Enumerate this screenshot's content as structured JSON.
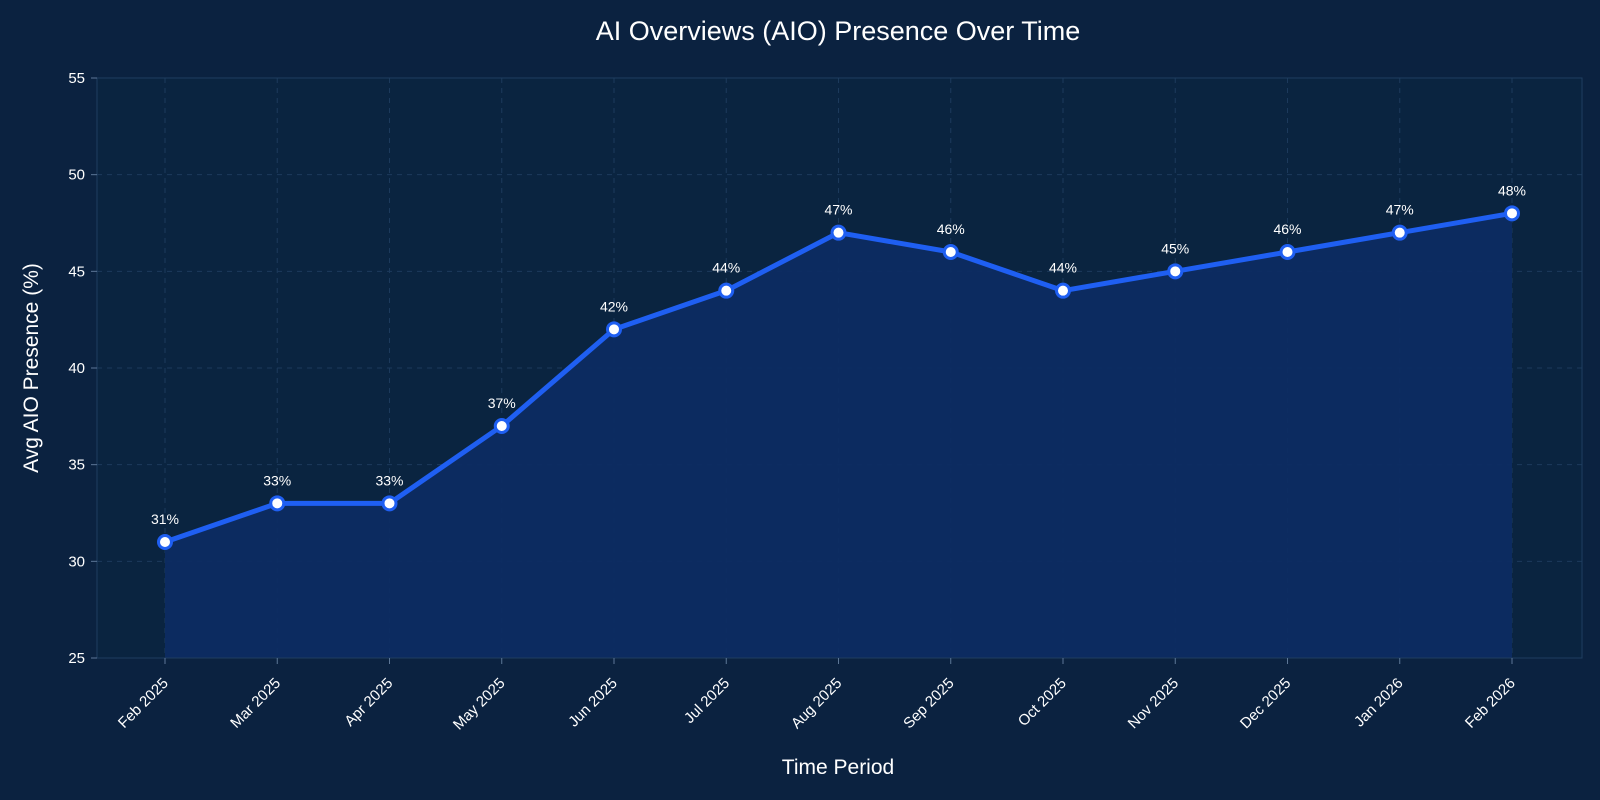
{
  "colors": {
    "background": "#0b2240",
    "plot_background": "#0a2440",
    "line": "#1f5ff2",
    "area_fill": "#0d2c62",
    "grid": "#1c3a5c",
    "marker_fill": "#ffffff",
    "text": "#ffffff"
  },
  "chart_data": {
    "type": "line",
    "title": "AI Overviews (AIO) Presence Over Time",
    "xlabel": "Time Period",
    "ylabel": "Avg AIO Presence (%)",
    "categories": [
      "Feb 2025",
      "Mar 2025",
      "Apr 2025",
      "May 2025",
      "Jun 2025",
      "Jul 2025",
      "Aug 2025",
      "Sep 2025",
      "Oct 2025",
      "Nov 2025",
      "Dec 2025",
      "Jan 2026",
      "Feb 2026"
    ],
    "values": [
      31,
      33,
      33,
      37,
      42,
      44,
      47,
      46,
      44,
      45,
      46,
      47,
      48
    ],
    "data_labels": [
      "31%",
      "33%",
      "33%",
      "37%",
      "42%",
      "44%",
      "47%",
      "46%",
      "44%",
      "45%",
      "46%",
      "47%",
      "48%"
    ],
    "ylim": [
      25,
      55
    ],
    "yticks": [
      25,
      30,
      35,
      40,
      45,
      50,
      55
    ],
    "ytick_labels": [
      "25",
      "30",
      "35",
      "40",
      "45",
      "50",
      "55"
    ],
    "grid": true,
    "area_fill": true,
    "markers": true
  }
}
